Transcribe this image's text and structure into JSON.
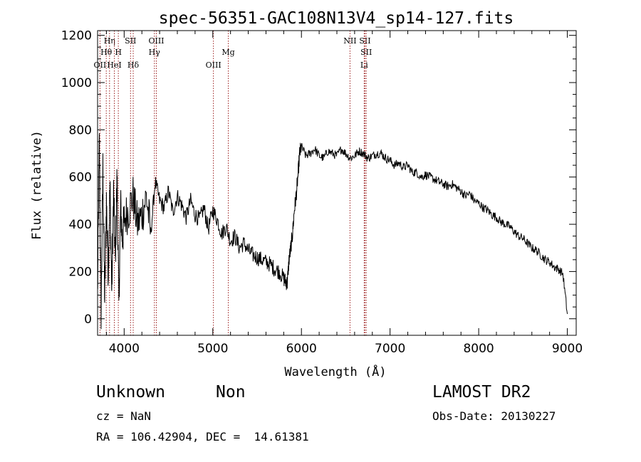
{
  "chart_data": {
    "type": "line",
    "title": "spec-56351-GAC108N13V4_sp14-127.fits",
    "xlabel": "Wavelength (Å)",
    "ylabel": "Flux (relative)",
    "xlim": [
      3700,
      9100
    ],
    "ylim": [
      -70,
      1220
    ],
    "xticks": [
      4000,
      5000,
      6000,
      7000,
      8000,
      9000
    ],
    "yticks": [
      0,
      200,
      400,
      600,
      800,
      1000,
      1200
    ],
    "grid": false,
    "series": [
      {
        "x": [
          3700,
          3720,
          3740,
          3760,
          3780,
          3800,
          3820,
          3840,
          3860,
          3880,
          3900,
          3920,
          3940,
          3960,
          3980,
          4000,
          4050,
          4100,
          4150,
          4200,
          4250,
          4300,
          4350,
          4400,
          4450,
          4500,
          4550,
          4600,
          4650,
          4700,
          4750,
          4800,
          4850,
          4900,
          4950,
          5000,
          5050,
          5100,
          5150,
          5200,
          5250,
          5300,
          5350,
          5400,
          5450,
          5500,
          5550,
          5600,
          5650,
          5700,
          5750,
          5800,
          5820,
          5840,
          5860,
          5880,
          5900,
          5920,
          5940,
          5960,
          5980,
          6000,
          6050,
          6100,
          6150,
          6200,
          6250,
          6300,
          6350,
          6400,
          6450,
          6500,
          6550,
          6600,
          6650,
          6700,
          6750,
          6800,
          6850,
          6900,
          6950,
          7000,
          7050,
          7100,
          7150,
          7200,
          7250,
          7300,
          7350,
          7400,
          7450,
          7500,
          7550,
          7600,
          7650,
          7700,
          7750,
          7800,
          7850,
          7900,
          7950,
          8000,
          8050,
          8100,
          8150,
          8200,
          8250,
          8300,
          8350,
          8400,
          8450,
          8500,
          8550,
          8600,
          8650,
          8700,
          8750,
          8800,
          8850,
          8900,
          8950,
          9000
        ],
        "y": [
          100,
          740,
          30,
          640,
          80,
          500,
          200,
          560,
          120,
          530,
          250,
          600,
          60,
          480,
          330,
          420,
          460,
          520,
          400,
          440,
          520,
          360,
          580,
          500,
          470,
          540,
          450,
          520,
          480,
          430,
          500,
          440,
          420,
          470,
          380,
          460,
          420,
          360,
          390,
          330,
          350,
          300,
          320,
          290,
          270,
          260,
          250,
          240,
          230,
          210,
          200,
          170,
          160,
          150,
          250,
          300,
          360,
          460,
          520,
          600,
          700,
          730,
          690,
          700,
          720,
          690,
          680,
          710,
          700,
          690,
          720,
          700,
          680,
          690,
          710,
          700,
          680,
          690,
          700,
          700,
          680,
          670,
          650,
          660,
          640,
          650,
          620,
          620,
          600,
          610,
          600,
          590,
          580,
          570,
          560,
          570,
          555,
          540,
          520,
          530,
          500,
          490,
          470,
          460,
          440,
          430,
          410,
          400,
          390,
          370,
          350,
          340,
          320,
          300,
          290,
          270,
          250,
          240,
          220,
          210,
          190,
          20
        ]
      }
    ],
    "lines": [
      {
        "label": "OII",
        "wave": 3727,
        "row": 3
      },
      {
        "label": "Hθ",
        "wave": 3798,
        "row": 2
      },
      {
        "label": "Hη",
        "wave": 3835,
        "row": 1
      },
      {
        "label": "HeI",
        "wave": 3889,
        "row": 3
      },
      {
        "label": "H",
        "wave": 3934,
        "row": 2
      },
      {
        "label": "SII",
        "wave": 4072,
        "row": 1
      },
      {
        "label": "Hδ",
        "wave": 4102,
        "row": 3
      },
      {
        "label": "OIII",
        "wave": 4363,
        "row": 1
      },
      {
        "label": "Hγ",
        "wave": 4341,
        "row": 2
      },
      {
        "label": "OIII",
        "wave": 5007,
        "row": 3
      },
      {
        "label": "Mg",
        "wave": 5175,
        "row": 2
      },
      {
        "label": "NII",
        "wave": 6548,
        "row": 1
      },
      {
        "label": "SII",
        "wave": 6717,
        "row": 1
      },
      {
        "label": "SII",
        "wave": 6731,
        "row": 2
      },
      {
        "label": "Li",
        "wave": 6708,
        "row": 3
      }
    ]
  },
  "info": {
    "classification": "Unknown",
    "subclass": "Non",
    "survey": "LAMOST DR2",
    "cz": "cz = NaN",
    "obs_date": "Obs-Date: 20130227",
    "coords": "RA = 106.42904, DEC =  14.61381"
  }
}
